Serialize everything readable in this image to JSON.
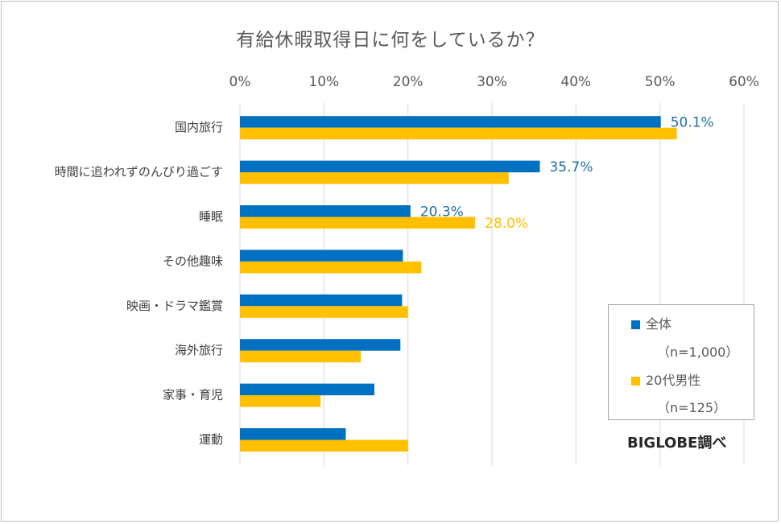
{
  "colors": {
    "all": "#0070c0",
    "twenties": "#ffc000",
    "grid": "#d9d9d9"
  },
  "source": "BIGLOBE調べ",
  "chart_data": {
    "type": "bar",
    "orientation": "horizontal",
    "title": "有給休暇取得日に何をしているか？",
    "xlim": [
      0,
      60
    ],
    "x_ticks": [
      "0%",
      "10%",
      "20%",
      "30%",
      "40%",
      "50%",
      "60%"
    ],
    "tick_values": [
      0,
      10,
      20,
      30,
      40,
      50,
      60
    ],
    "grid": true,
    "legend_position": "bottom-right",
    "categories": [
      "国内旅行",
      "時間に追われずのんびり過ごす",
      "睡眠",
      "その他趣味",
      "映画・ドラマ鑑賞",
      "海外旅行",
      "家事・育児",
      "運動"
    ],
    "series": [
      {
        "name": "全体",
        "name_sub": "（n=1,000）",
        "values": [
          50.1,
          35.7,
          20.3,
          19.4,
          19.3,
          19.1,
          16.0,
          12.6
        ],
        "labels": [
          "50.1%",
          "35.7%",
          "20.3%",
          "",
          "",
          "",
          "",
          ""
        ]
      },
      {
        "name": "20代男性",
        "name_sub": "（n=125）",
        "values": [
          52.0,
          32.0,
          28.0,
          21.6,
          20.0,
          14.4,
          9.6,
          20.0
        ],
        "labels": [
          "",
          "",
          "28.0%",
          "",
          "",
          "",
          "",
          ""
        ]
      }
    ]
  }
}
